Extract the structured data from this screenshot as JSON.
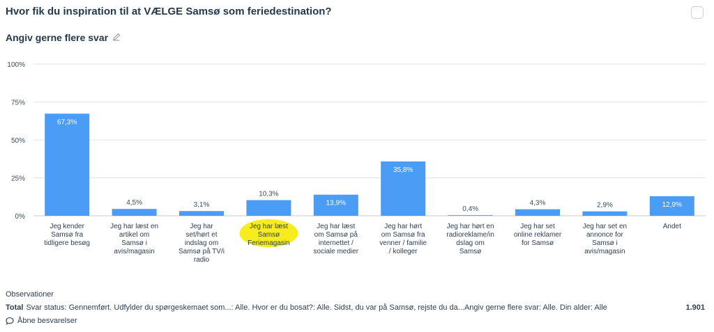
{
  "header": {
    "title": "Hvor fik du inspiration til at VÆLGE Samsø som feriedestination?",
    "subtitle": "Angiv gerne flere svar"
  },
  "chart_data": {
    "type": "bar",
    "ylim": [
      0,
      100
    ],
    "yticks": [
      "0%",
      "25%",
      "50%",
      "75%",
      "100%"
    ],
    "grid": true,
    "bar_color": "#4a9cf5",
    "highlight_color": "#f7ec1e",
    "highlighted_category_index": 3,
    "categories": [
      [
        "Jeg kender",
        "Samsø fra",
        "tidligere besøg"
      ],
      [
        "Jeg har læst en",
        "artikel om",
        "Samsø i",
        "avis/magasin"
      ],
      [
        "Jeg har",
        "set/hørt et",
        "indslag om",
        "Samsø på TV/i",
        "radio"
      ],
      [
        "Jeg har læst",
        "Samsø",
        "Feriemagasin"
      ],
      [
        "Jeg har læst",
        "om Samsø på",
        "internettet /",
        "sociale medier"
      ],
      [
        "Jeg har hørt",
        "om Samsø fra",
        "venner / familie",
        "/ kolleger"
      ],
      [
        "Jeg har hørt en",
        "radioreklame/in",
        "dslag om",
        "Samsø"
      ],
      [
        "Jeg har set",
        "online reklamer",
        "for Samsø"
      ],
      [
        "Jeg har set en",
        "annonce for",
        "Samsø i",
        "avis/magasin"
      ],
      [
        "Andet"
      ]
    ],
    "values": [
      67.3,
      4.5,
      3.1,
      10.3,
      13.9,
      35.8,
      0.4,
      4.3,
      2.9,
      12.9
    ],
    "value_labels": [
      "67,3%",
      "4,5%",
      "3,1%",
      "10,3%",
      "13,9%",
      "35,8%",
      "0,4%",
      "4,3%",
      "2,9%",
      "12,9%"
    ]
  },
  "footer": {
    "observations_label": "Observationer",
    "total_label": "Total",
    "total_filter": "Svar status: Gennemført. Udfylder du spørgeskemaet som...: Alle. Hvor er du bosat?: Alle. Sidst, du var på Samsø, rejste du da...Angiv gerne flere svar: Alle. Din alder: Alle",
    "total_count": "1.901",
    "open_answers": "Åbne besvarelser"
  }
}
